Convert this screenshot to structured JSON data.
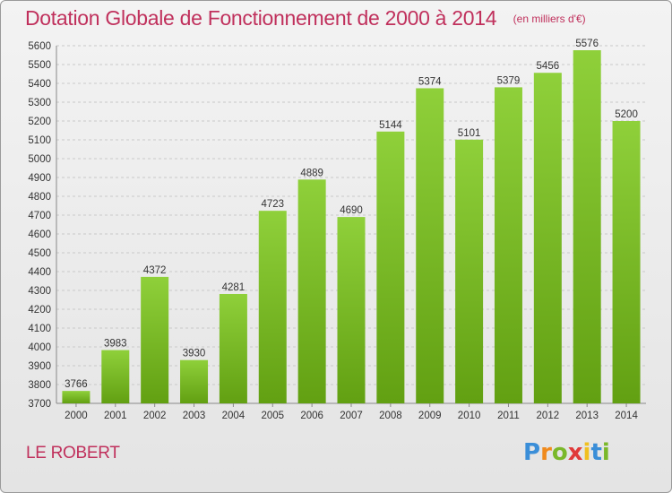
{
  "chart_data": {
    "type": "bar",
    "title": "Dotation Globale de Fonctionnement de 2000 à 2014",
    "unit": "(en milliers d'€)",
    "categories": [
      "2000",
      "2001",
      "2002",
      "2003",
      "2004",
      "2005",
      "2006",
      "2007",
      "2008",
      "2009",
      "2010",
      "2011",
      "2012",
      "2013",
      "2014"
    ],
    "values": [
      3766,
      3983,
      4372,
      3930,
      4281,
      4723,
      4889,
      4690,
      5144,
      5374,
      5101,
      5379,
      5456,
      5576,
      5200
    ],
    "ylim": [
      3700,
      5600
    ],
    "ytick_step": 100,
    "grid": true,
    "bar_color": "#7ab82a"
  },
  "commune": "LE ROBERT",
  "logo": {
    "letters": [
      "P",
      "r",
      "o",
      "x",
      "i",
      "t",
      "i"
    ],
    "colors": [
      "#3a8ed8",
      "#f08a1c",
      "#7ab82a",
      "#e03a3a",
      "#f0c020",
      "#3a8ed8",
      "#7ab82a"
    ]
  }
}
